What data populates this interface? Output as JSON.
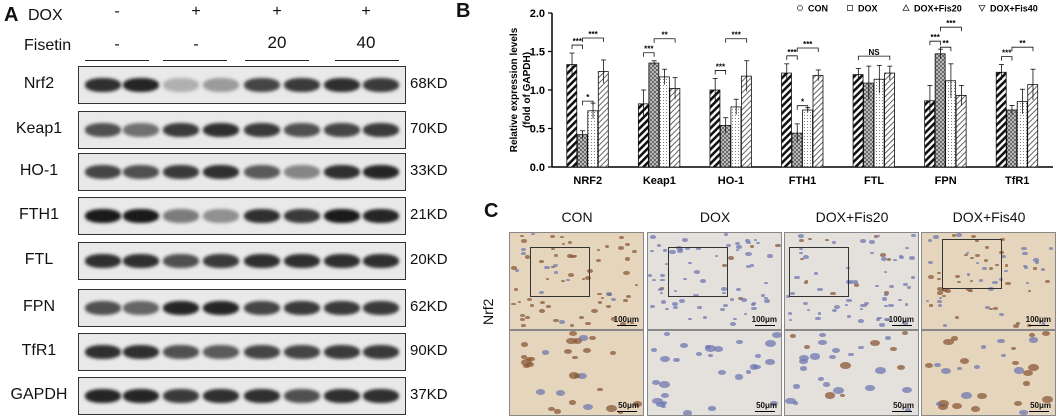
{
  "panelA": {
    "letter": "A",
    "dox_label": "DOX",
    "fisetin_label": "Fisetin",
    "dox_signs": [
      "-",
      "+",
      "+",
      "+"
    ],
    "fisetin_values": [
      "-",
      "-",
      "20",
      "40"
    ],
    "rows": [
      {
        "protein": "Nrf2",
        "kd": "68KD"
      },
      {
        "protein": "Keap1",
        "kd": "70KD"
      },
      {
        "protein": "HO-1",
        "kd": "33KD"
      },
      {
        "protein": "FTH1",
        "kd": "21KD"
      },
      {
        "protein": "FTL",
        "kd": "20KD"
      },
      {
        "protein": "FPN",
        "kd": "62KD"
      },
      {
        "protein": "TfR1",
        "kd": "90KD"
      },
      {
        "protein": "GAPDH",
        "kd": "37KD"
      }
    ]
  },
  "panelB": {
    "letter": "B",
    "chart_data": {
      "type": "bar",
      "ylabel": "Relative expression levels (fold of GAPDH)",
      "ylabel_line1": "Relative expression levels",
      "ylabel_line2": "(fold of GAPDH)",
      "ylim": [
        0.0,
        2.0
      ],
      "yticks": [
        "0.0",
        "0.5",
        "1.0",
        "1.5",
        "2.0"
      ],
      "categories": [
        "NRF2",
        "Keap1",
        "HO-1",
        "FTH1",
        "FTL",
        "FPN",
        "TfR1"
      ],
      "series": [
        {
          "name": "CON",
          "values": [
            1.33,
            0.82,
            1.0,
            1.22,
            1.2,
            0.86,
            1.23
          ],
          "errors": [
            0.15,
            0.18,
            0.15,
            0.12,
            0.08,
            0.2,
            0.1
          ]
        },
        {
          "name": "DOX",
          "values": [
            0.42,
            1.35,
            0.54,
            0.44,
            1.09,
            1.47,
            0.74
          ],
          "errors": [
            0.05,
            0.03,
            0.1,
            0.12,
            0.22,
            0.06,
            0.06
          ]
        },
        {
          "name": "DOX+Fis20",
          "values": [
            0.73,
            1.17,
            0.78,
            0.74,
            1.14,
            1.12,
            0.85
          ],
          "errors": [
            0.1,
            0.1,
            0.1,
            0.03,
            0.18,
            0.22,
            0.16
          ]
        },
        {
          "name": "DOX+Fis40",
          "values": [
            1.24,
            1.02,
            1.18,
            1.19,
            1.22,
            0.93,
            1.07
          ],
          "errors": [
            0.15,
            0.14,
            0.2,
            0.07,
            0.09,
            0.13,
            0.2
          ]
        }
      ],
      "significance": [
        [
          "***",
          "*",
          "***"
        ],
        [
          "***",
          "",
          "**"
        ],
        [
          "***",
          "",
          "***"
        ],
        [
          "***",
          "*",
          "***"
        ],
        [
          "",
          "",
          "NS"
        ],
        [
          "***",
          "**",
          "***"
        ],
        [
          "***",
          "",
          "**"
        ]
      ]
    }
  },
  "panelC": {
    "letter": "C",
    "row_label": "Nrf2",
    "groups": [
      "CON",
      "DOX",
      "DOX+Fis20",
      "DOX+Fis40"
    ],
    "scale_top": "100μm",
    "scale_bottom": "50μm"
  },
  "colors": {
    "ihc_bg": "#e3d7c3",
    "nuclei_brown": "#8a5a3a",
    "nuclei_blue": "#6f78b0"
  }
}
